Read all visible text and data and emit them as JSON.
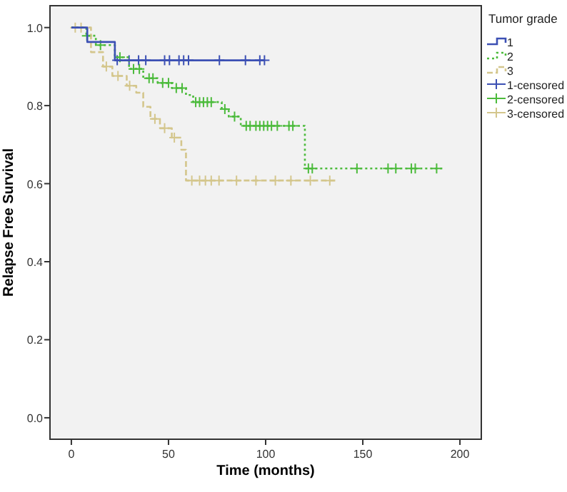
{
  "chart_data": {
    "type": "step",
    "xlabel": "Time (months)",
    "ylabel": "Relapse Free Survival",
    "legend_title": "Tumor grade",
    "legend": "right",
    "xlim": [
      -11,
      211
    ],
    "ylim": [
      -0.055,
      1.056
    ],
    "xticks": [
      0,
      50,
      100,
      150,
      200
    ],
    "yticks": [
      {
        "value": 0,
        "label": "0.0"
      },
      0.2,
      0.4,
      0.6,
      0.8,
      {
        "value": 1,
        "label": "1.0"
      }
    ],
    "series": [
      {
        "name": "1",
        "color": "#3c50b4",
        "line_style": "solid",
        "x": [
          0,
          8.2,
          22.4,
          99.4
        ],
        "values": [
          1,
          0.963,
          0.916,
          0.916
        ]
      },
      {
        "name": "2",
        "color": "#4cbb3c",
        "line_style": "dotted",
        "x": [
          0,
          7.7,
          12.6,
          22.4,
          29.7,
          37,
          44.4,
          51.7,
          59,
          62.7,
          77.4,
          81,
          87.2,
          120.2,
          192.4
        ],
        "values": [
          1,
          0.979,
          0.955,
          0.924,
          0.894,
          0.87,
          0.858,
          0.845,
          0.827,
          0.809,
          0.791,
          0.772,
          0.748,
          0.639,
          0.639
        ]
      },
      {
        "name": "3",
        "color": "#d4c68c",
        "line_style": "dashed",
        "x": [
          0,
          10.1,
          16.3,
          21.1,
          28.5,
          33.4,
          37,
          40.7,
          45.6,
          51.7,
          56.6,
          59,
          136
        ],
        "values": [
          1,
          0.937,
          0.9,
          0.876,
          0.851,
          0.833,
          0.797,
          0.766,
          0.742,
          0.718,
          0.687,
          0.608,
          0.608
        ]
      },
      {
        "name": "1-censored",
        "type": "scatter",
        "marker": "cross",
        "color": "#3c50b4",
        "x": [
          23.6,
          29.7,
          34.6,
          38.3,
          48,
          50.5,
          55.4,
          57.8,
          60.3,
          76.2,
          89.6,
          97,
          99.4
        ],
        "values": [
          0.916,
          0.916,
          0.916,
          0.916,
          0.916,
          0.916,
          0.916,
          0.916,
          0.916,
          0.916,
          0.916,
          0.916,
          0.916
        ]
      },
      {
        "name": "2-censored",
        "type": "scatter",
        "marker": "cross",
        "color": "#4cbb3c",
        "x": [
          8,
          15,
          25,
          32,
          35,
          40,
          42,
          47,
          50,
          54,
          57,
          64,
          66,
          68,
          70,
          72,
          79,
          84,
          90,
          92,
          95,
          97,
          99,
          101,
          103,
          106,
          112,
          114,
          122,
          124,
          147,
          163,
          167,
          175,
          177,
          188
        ],
        "values": [
          0.979,
          0.955,
          0.924,
          0.894,
          0.894,
          0.87,
          0.87,
          0.858,
          0.858,
          0.845,
          0.845,
          0.809,
          0.809,
          0.809,
          0.809,
          0.809,
          0.791,
          0.772,
          0.748,
          0.748,
          0.748,
          0.748,
          0.748,
          0.748,
          0.748,
          0.748,
          0.748,
          0.748,
          0.639,
          0.639,
          0.639,
          0.639,
          0.639,
          0.639,
          0.639,
          0.639
        ]
      },
      {
        "name": "3-censored",
        "type": "scatter",
        "marker": "cross",
        "color": "#d4c68c",
        "x": [
          2,
          5,
          18,
          24,
          30,
          43,
          48,
          53,
          62,
          66,
          69,
          72,
          76,
          85,
          95,
          105,
          113,
          123,
          133
        ],
        "values": [
          1,
          1,
          0.9,
          0.876,
          0.851,
          0.766,
          0.742,
          0.718,
          0.608,
          0.608,
          0.608,
          0.608,
          0.608,
          0.608,
          0.608,
          0.608,
          0.608,
          0.608,
          0.608
        ]
      }
    ]
  }
}
